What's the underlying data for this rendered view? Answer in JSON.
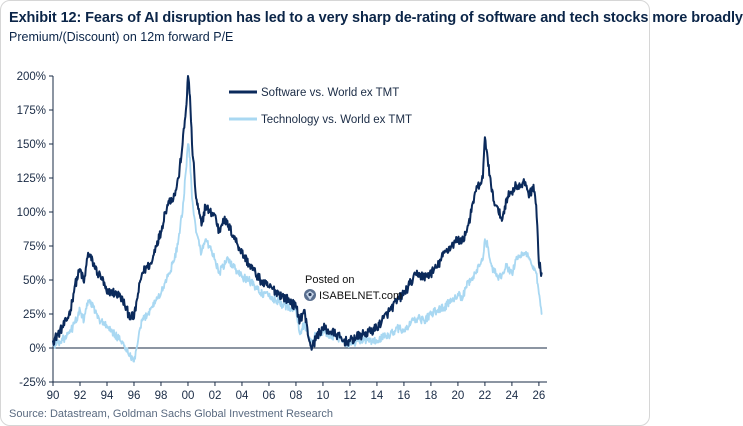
{
  "header": {
    "title": "Exhibit 12: Fears of AI disruption has led to a very sharp de-rating of software and tech stocks more broadly",
    "subtitle": "Premium/(Discount) on 12m forward P/E"
  },
  "footer": {
    "source": "Source: Datastream, Goldman Sachs Global Investment Research"
  },
  "watermark": {
    "line1": "Posted on",
    "line2": "ISABELNET.com"
  },
  "colors": {
    "software": "#0b2a5b",
    "technology": "#a9d8f2",
    "text": "#0b2548"
  },
  "chart_data": {
    "type": "line",
    "title": "Exhibit 12: Fears of AI disruption has led to a very sharp de-rating of software and tech stocks more broadly",
    "ylabel": "Premium/(Discount) on 12m forward P/E",
    "xlabel": "",
    "xlim": [
      1990,
      2026.6
    ],
    "ylim": [
      -25,
      200
    ],
    "xticks": [
      1990,
      1992,
      1994,
      1996,
      1998,
      2000,
      2002,
      2004,
      2006,
      2008,
      2010,
      2012,
      2014,
      2016,
      2018,
      2020,
      2022,
      2024,
      2026
    ],
    "xtick_labels": [
      "90",
      "92",
      "94",
      "96",
      "98",
      "00",
      "02",
      "04",
      "06",
      "08",
      "10",
      "12",
      "14",
      "16",
      "18",
      "20",
      "22",
      "24",
      "26"
    ],
    "yticks": [
      -25,
      0,
      25,
      50,
      75,
      100,
      125,
      150,
      175,
      200
    ],
    "ytick_labels": [
      "-25%",
      "0%",
      "25%",
      "50%",
      "75%",
      "100%",
      "125%",
      "150%",
      "175%",
      "200%"
    ],
    "legend_position": "top-center",
    "series": [
      {
        "name": "Software vs. World ex TMT",
        "color": "#0b2a5b",
        "x": [
          1990.0,
          1990.5,
          1991.0,
          1991.3,
          1991.6,
          1992.0,
          1992.3,
          1992.6,
          1993.0,
          1993.3,
          1993.6,
          1994.0,
          1994.3,
          1994.6,
          1995.0,
          1995.3,
          1995.6,
          1996.0,
          1996.3,
          1996.6,
          1997.0,
          1997.3,
          1997.6,
          1998.0,
          1998.3,
          1998.6,
          1999.0,
          1999.3,
          1999.6,
          1999.85,
          2000.0,
          2000.15,
          2000.3,
          2000.6,
          2001.0,
          2001.3,
          2001.6,
          2002.0,
          2002.3,
          2002.6,
          2003.0,
          2003.5,
          2004.0,
          2004.5,
          2005.0,
          2005.5,
          2006.0,
          2006.5,
          2007.0,
          2007.5,
          2008.0,
          2008.3,
          2008.6,
          2009.0,
          2009.2,
          2009.5,
          2010.0,
          2010.5,
          2011.0,
          2011.5,
          2012.0,
          2012.5,
          2013.0,
          2013.5,
          2014.0,
          2014.5,
          2015.0,
          2015.5,
          2016.0,
          2016.5,
          2017.0,
          2017.5,
          2018.0,
          2018.5,
          2019.0,
          2019.5,
          2020.0,
          2020.3,
          2020.6,
          2021.0,
          2021.3,
          2021.6,
          2021.85,
          2022.0,
          2022.2,
          2022.5,
          2022.8,
          2023.0,
          2023.3,
          2023.6,
          2024.0,
          2024.3,
          2024.6,
          2025.0,
          2025.3,
          2025.6,
          2025.8,
          2026.0,
          2026.2
        ],
        "values": [
          5,
          12,
          20,
          28,
          45,
          58,
          48,
          70,
          62,
          55,
          52,
          40,
          42,
          40,
          38,
          32,
          25,
          22,
          40,
          55,
          60,
          62,
          75,
          85,
          100,
          108,
          112,
          125,
          150,
          175,
          200,
          185,
          150,
          110,
          90,
          105,
          100,
          98,
          85,
          95,
          90,
          80,
          70,
          62,
          55,
          48,
          45,
          42,
          38,
          35,
          30,
          20,
          28,
          5,
          0,
          8,
          15,
          12,
          10,
          5,
          5,
          8,
          10,
          12,
          15,
          22,
          28,
          35,
          40,
          48,
          55,
          52,
          55,
          60,
          70,
          75,
          80,
          78,
          85,
          100,
          115,
          120,
          125,
          155,
          140,
          115,
          105,
          100,
          95,
          110,
          115,
          120,
          118,
          122,
          112,
          120,
          105,
          62,
          55
        ]
      },
      {
        "name": "Technology vs. World ex TMT",
        "color": "#a9d8f2",
        "x": [
          1990.0,
          1990.5,
          1991.0,
          1991.3,
          1991.6,
          1992.0,
          1992.3,
          1992.6,
          1993.0,
          1993.3,
          1993.6,
          1994.0,
          1994.3,
          1994.6,
          1995.0,
          1995.3,
          1995.6,
          1996.0,
          1996.3,
          1996.6,
          1997.0,
          1997.3,
          1997.6,
          1998.0,
          1998.3,
          1998.6,
          1999.0,
          1999.3,
          1999.6,
          1999.85,
          2000.0,
          2000.15,
          2000.3,
          2000.6,
          2001.0,
          2001.3,
          2001.6,
          2002.0,
          2002.3,
          2002.6,
          2003.0,
          2003.5,
          2004.0,
          2004.5,
          2005.0,
          2005.5,
          2006.0,
          2006.5,
          2007.0,
          2007.5,
          2008.0,
          2008.3,
          2008.6,
          2009.0,
          2009.2,
          2009.5,
          2010.0,
          2010.5,
          2011.0,
          2011.5,
          2012.0,
          2012.5,
          2013.0,
          2013.5,
          2014.0,
          2014.5,
          2015.0,
          2015.5,
          2016.0,
          2016.5,
          2017.0,
          2017.5,
          2018.0,
          2018.5,
          2019.0,
          2019.5,
          2020.0,
          2020.3,
          2020.6,
          2021.0,
          2021.3,
          2021.6,
          2021.85,
          2022.0,
          2022.2,
          2022.5,
          2022.8,
          2023.0,
          2023.3,
          2023.6,
          2024.0,
          2024.3,
          2024.6,
          2025.0,
          2025.3,
          2025.6,
          2025.8,
          2026.0,
          2026.2
        ],
        "values": [
          2,
          5,
          8,
          12,
          18,
          28,
          20,
          35,
          30,
          22,
          20,
          15,
          12,
          10,
          5,
          2,
          -5,
          -10,
          5,
          20,
          25,
          30,
          35,
          40,
          48,
          55,
          65,
          80,
          100,
          130,
          150,
          140,
          110,
          85,
          70,
          80,
          75,
          65,
          55,
          60,
          65,
          58,
          52,
          50,
          45,
          40,
          38,
          35,
          32,
          30,
          28,
          10,
          18,
          8,
          5,
          10,
          12,
          10,
          8,
          5,
          3,
          5,
          6,
          5,
          5,
          8,
          10,
          15,
          12,
          18,
          22,
          20,
          25,
          28,
          30,
          35,
          40,
          35,
          45,
          50,
          55,
          60,
          65,
          80,
          75,
          60,
          55,
          50,
          55,
          60,
          55,
          65,
          68,
          70,
          65,
          60,
          55,
          40,
          25
        ]
      }
    ]
  }
}
